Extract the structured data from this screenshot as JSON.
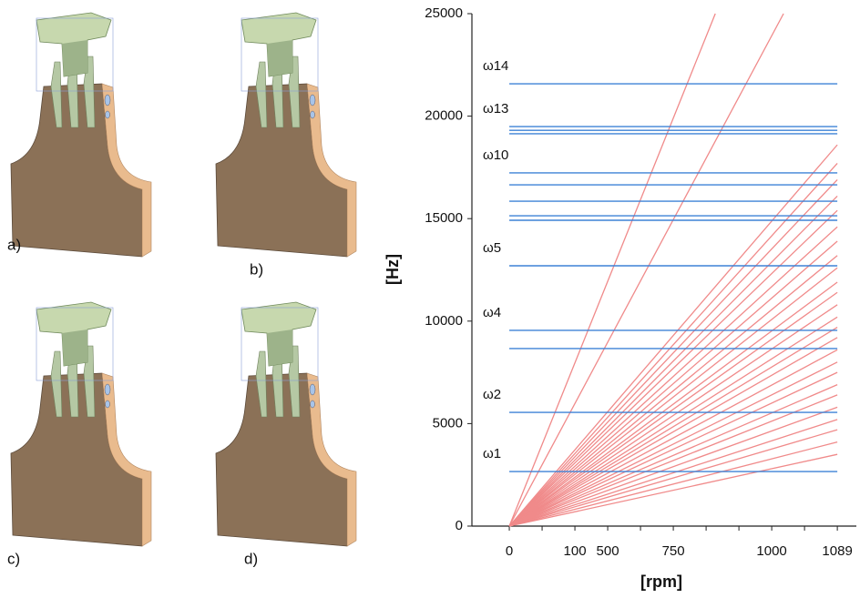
{
  "panels": {
    "labels": [
      "a)",
      "b)",
      "c)",
      "d)"
    ]
  },
  "chart_data": {
    "type": "campbell",
    "xlabel": "[rpm]",
    "ylabel": "[Hz]",
    "categories": [
      "0",
      null,
      "100",
      "500",
      null,
      "750",
      null,
      null,
      "1000",
      null,
      "1089"
    ],
    "xlim": [
      -1.14,
      10.58
    ],
    "ylim": [
      0,
      25000
    ],
    "yticks": [
      0,
      5000,
      10000,
      15000,
      20000,
      25000
    ],
    "line_color": "#f08a8a",
    "mode_color": "#3d82d6",
    "modes": [
      {
        "value": 2660,
        "label": "ω1"
      },
      {
        "value": 5550,
        "label": "ω2"
      },
      {
        "value": 8660
      },
      {
        "value": 9550,
        "label": "ω4"
      },
      {
        "value": 12700,
        "label": "ω5"
      },
      {
        "value": 14920
      },
      {
        "value": 15140
      },
      {
        "value": 15850
      },
      {
        "value": 16650
      },
      {
        "value": 17230,
        "label": "ω10"
      },
      {
        "value": 19140
      },
      {
        "value": 19310
      },
      {
        "value": 19490,
        "label": "ω13"
      },
      {
        "value": 21580,
        "label": "ω14"
      }
    ],
    "series": [
      {
        "x": [
          0,
          6.28
        ],
        "values": [
          0,
          25000
        ]
      },
      {
        "x": [
          0,
          8.36
        ],
        "values": [
          0,
          25000
        ]
      },
      {
        "x": [
          0,
          10
        ],
        "values": [
          0,
          18600
        ]
      },
      {
        "x": [
          0,
          10
        ],
        "values": [
          0,
          17700
        ]
      },
      {
        "x": [
          0,
          10
        ],
        "values": [
          0,
          16900
        ]
      },
      {
        "x": [
          0,
          10
        ],
        "values": [
          0,
          16100
        ]
      },
      {
        "x": [
          0,
          10
        ],
        "values": [
          0,
          15400
        ]
      },
      {
        "x": [
          0,
          10
        ],
        "values": [
          0,
          14600
        ]
      },
      {
        "x": [
          0,
          10
        ],
        "values": [
          0,
          13900
        ]
      },
      {
        "x": [
          0,
          10
        ],
        "values": [
          0,
          13200
        ]
      },
      {
        "x": [
          0,
          10
        ],
        "values": [
          0,
          12600
        ]
      },
      {
        "x": [
          0,
          10
        ],
        "values": [
          0,
          11900
        ]
      },
      {
        "x": [
          0,
          10
        ],
        "values": [
          0,
          11400
        ]
      },
      {
        "x": [
          0,
          10
        ],
        "values": [
          0,
          10800
        ]
      },
      {
        "x": [
          0,
          10
        ],
        "values": [
          0,
          10200
        ]
      },
      {
        "x": [
          0,
          10
        ],
        "values": [
          0,
          9700
        ]
      },
      {
        "x": [
          0,
          10
        ],
        "values": [
          0,
          9200
        ]
      },
      {
        "x": [
          0,
          10
        ],
        "values": [
          0,
          8600
        ]
      },
      {
        "x": [
          0,
          10
        ],
        "values": [
          0,
          8000
        ]
      },
      {
        "x": [
          0,
          10
        ],
        "values": [
          0,
          7500
        ]
      },
      {
        "x": [
          0,
          10
        ],
        "values": [
          0,
          6900
        ]
      },
      {
        "x": [
          0,
          10
        ],
        "values": [
          0,
          6400
        ]
      },
      {
        "x": [
          0,
          10
        ],
        "values": [
          0,
          5800
        ]
      },
      {
        "x": [
          0,
          10
        ],
        "values": [
          0,
          5200
        ]
      },
      {
        "x": [
          0,
          10
        ],
        "values": [
          0,
          4700
        ]
      },
      {
        "x": [
          0,
          10
        ],
        "values": [
          0,
          4100
        ]
      },
      {
        "x": [
          0,
          10
        ],
        "values": [
          0,
          3500
        ]
      }
    ]
  }
}
